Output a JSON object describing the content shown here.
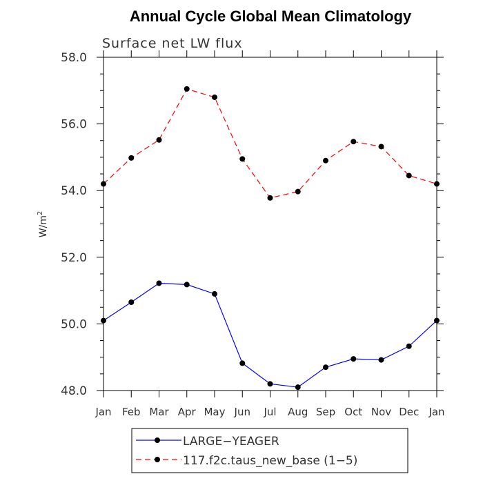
{
  "chart_data": {
    "type": "line",
    "title": "Annual Cycle Global Mean Climatology",
    "subtitle": "Surface net LW flux",
    "ylabel": "W/m",
    "ylabel_superscript": "2",
    "xlabel": "",
    "categories": [
      "Jan",
      "Feb",
      "Mar",
      "Apr",
      "May",
      "Jun",
      "Jul",
      "Aug",
      "Sep",
      "Oct",
      "Nov",
      "Dec",
      "Jan"
    ],
    "ylim": [
      48.0,
      58.0
    ],
    "yticks": [
      "48.0",
      "50.0",
      "52.0",
      "54.0",
      "56.0",
      "58.0"
    ],
    "grid": false,
    "legend_position": "bottom",
    "series": [
      {
        "name": "LARGE−YEAGER",
        "color": "#0000ff",
        "line_style": "solid",
        "values": [
          50.1,
          50.65,
          51.22,
          51.18,
          50.9,
          48.82,
          48.2,
          48.1,
          48.7,
          48.95,
          48.92,
          49.33,
          50.1
        ]
      },
      {
        "name": "117.f2c.taus_new_base (1−5)",
        "color": "#ff0000",
        "line_style": "dashed",
        "values": [
          54.2,
          54.98,
          55.52,
          57.05,
          56.8,
          54.95,
          53.78,
          53.97,
          54.9,
          55.47,
          55.32,
          54.45,
          54.2
        ]
      }
    ]
  }
}
